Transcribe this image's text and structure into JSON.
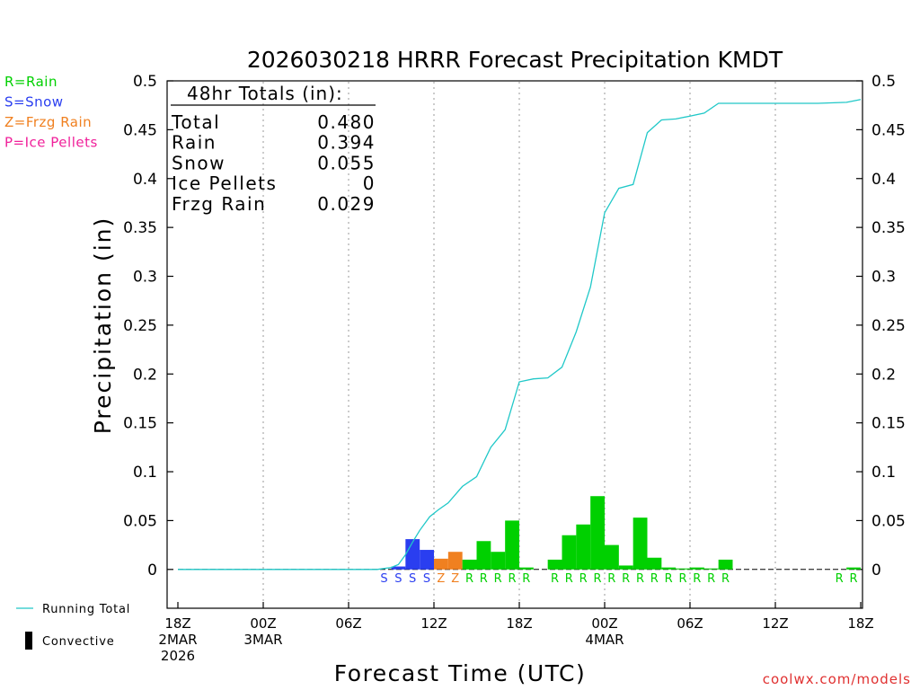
{
  "chart_data": {
    "type": "bar",
    "title": "2026030218 HRRR Forecast Precipitation KMDT",
    "xlabel": "Forecast Time (UTC)",
    "ylabel": "Precipitation (in)",
    "ylim": [
      -0.04,
      0.5
    ],
    "y_ticks": [
      0,
      0.05,
      0.1,
      0.15,
      0.2,
      0.25,
      0.3,
      0.35,
      0.4,
      0.45,
      0.5
    ],
    "y_tick_labels": [
      "0",
      "0.05",
      "0.1",
      "0.15",
      "0.2",
      "0.25",
      "0.3",
      "0.35",
      "0.4",
      "0.45",
      "0.5"
    ],
    "xlim_hours": [
      0,
      48
    ],
    "x_ticks": [
      {
        "hour": 0,
        "lines": [
          "18Z",
          "2MAR",
          "2026"
        ]
      },
      {
        "hour": 6,
        "lines": [
          "00Z",
          "3MAR"
        ]
      },
      {
        "hour": 12,
        "lines": [
          "06Z"
        ]
      },
      {
        "hour": 18,
        "lines": [
          "12Z"
        ]
      },
      {
        "hour": 24,
        "lines": [
          "18Z"
        ]
      },
      {
        "hour": 30,
        "lines": [
          "00Z",
          "4MAR"
        ]
      },
      {
        "hour": 36,
        "lines": [
          "06Z"
        ]
      },
      {
        "hour": 42,
        "lines": [
          "12Z"
        ]
      },
      {
        "hour": 48,
        "lines": [
          "18Z"
        ]
      }
    ],
    "grid": "vertical-dotted",
    "ptype_legend": [
      {
        "code": "R",
        "label": "R=Rain",
        "color": "#00d000"
      },
      {
        "code": "S",
        "label": "S=Snow",
        "color": "#2a3ef0"
      },
      {
        "code": "Z",
        "label": "Z=Frzg Rain",
        "color": "#f08020"
      },
      {
        "code": "P",
        "label": "P=Ice Pellets",
        "color": "#f0209a"
      }
    ],
    "bottom_legend": [
      {
        "key": "running_total",
        "label": "Running Total",
        "color": "#20c8c8"
      },
      {
        "key": "convective",
        "label": "Convective",
        "color": "#000000"
      }
    ],
    "totals": {
      "heading": "48hr Totals (in):",
      "rows": [
        {
          "label": "Total",
          "value": "0.480"
        },
        {
          "label": "Rain",
          "value": "0.394"
        },
        {
          "label": "Snow",
          "value": "0.055"
        },
        {
          "label": "Ice Pellets",
          "value": "0"
        },
        {
          "label": "Frzg Rain",
          "value": "0.029"
        }
      ]
    },
    "hourly_bars": [
      {
        "hour": 16,
        "type": "S",
        "value": 0.003
      },
      {
        "hour": 17,
        "type": "S",
        "value": 0.031
      },
      {
        "hour": 18,
        "type": "S",
        "value": 0.02
      },
      {
        "hour": 19,
        "type": "Z",
        "value": 0.011
      },
      {
        "hour": 20,
        "type": "Z",
        "value": 0.018
      },
      {
        "hour": 21,
        "type": "R",
        "value": 0.01
      },
      {
        "hour": 22,
        "type": "R",
        "value": 0.029
      },
      {
        "hour": 23,
        "type": "R",
        "value": 0.018
      },
      {
        "hour": 24,
        "type": "R",
        "value": 0.05
      },
      {
        "hour": 25,
        "type": "R",
        "value": 0.002
      },
      {
        "hour": 27,
        "type": "R",
        "value": 0.01
      },
      {
        "hour": 28,
        "type": "R",
        "value": 0.035
      },
      {
        "hour": 29,
        "type": "R",
        "value": 0.046
      },
      {
        "hour": 30,
        "type": "R",
        "value": 0.075
      },
      {
        "hour": 31,
        "type": "R",
        "value": 0.025
      },
      {
        "hour": 32,
        "type": "R",
        "value": 0.004
      },
      {
        "hour": 33,
        "type": "R",
        "value": 0.053
      },
      {
        "hour": 34,
        "type": "R",
        "value": 0.012
      },
      {
        "hour": 35,
        "type": "R",
        "value": 0.002
      },
      {
        "hour": 36,
        "type": "R",
        "value": 0.001
      },
      {
        "hour": 37,
        "type": "R",
        "value": 0.002
      },
      {
        "hour": 38,
        "type": "R",
        "value": 0.001
      },
      {
        "hour": 39,
        "type": "R",
        "value": 0.01
      },
      {
        "hour": 48,
        "type": "R",
        "value": 0.002
      }
    ],
    "ptype_letters": [
      {
        "hour": 15,
        "code": "S"
      },
      {
        "hour": 16,
        "code": "S"
      },
      {
        "hour": 17,
        "code": "S"
      },
      {
        "hour": 18,
        "code": "S"
      },
      {
        "hour": 19,
        "code": "Z"
      },
      {
        "hour": 20,
        "code": "Z"
      },
      {
        "hour": 21,
        "code": "R"
      },
      {
        "hour": 22,
        "code": "R"
      },
      {
        "hour": 23,
        "code": "R"
      },
      {
        "hour": 24,
        "code": "R"
      },
      {
        "hour": 25,
        "code": "R"
      },
      {
        "hour": 27,
        "code": "R"
      },
      {
        "hour": 28,
        "code": "R"
      },
      {
        "hour": 29,
        "code": "R"
      },
      {
        "hour": 30,
        "code": "R"
      },
      {
        "hour": 31,
        "code": "R"
      },
      {
        "hour": 32,
        "code": "R"
      },
      {
        "hour": 33,
        "code": "R"
      },
      {
        "hour": 34,
        "code": "R"
      },
      {
        "hour": 35,
        "code": "R"
      },
      {
        "hour": 36,
        "code": "R"
      },
      {
        "hour": 37,
        "code": "R"
      },
      {
        "hour": 38,
        "code": "R"
      },
      {
        "hour": 39,
        "code": "R"
      },
      {
        "hour": 47,
        "code": "R"
      },
      {
        "hour": 48,
        "code": "R"
      }
    ],
    "running_total": {
      "hours": [
        0,
        14,
        15,
        15.5,
        16,
        16.5,
        17,
        17.7,
        18.3,
        19,
        20,
        21,
        22,
        23,
        24,
        25,
        26,
        27,
        28,
        29,
        30,
        31,
        32,
        33,
        34,
        35,
        36,
        37,
        38,
        39,
        45,
        47,
        48
      ],
      "values": [
        0,
        0,
        0.002,
        0.005,
        0.015,
        0.028,
        0.04,
        0.054,
        0.061,
        0.068,
        0.085,
        0.095,
        0.125,
        0.143,
        0.192,
        0.195,
        0.196,
        0.207,
        0.243,
        0.289,
        0.365,
        0.39,
        0.394,
        0.447,
        0.46,
        0.461,
        0.464,
        0.467,
        0.477,
        0.477,
        0.477,
        0.478,
        0.481
      ]
    }
  },
  "footer": {
    "credit": "coolwx.com/models"
  }
}
